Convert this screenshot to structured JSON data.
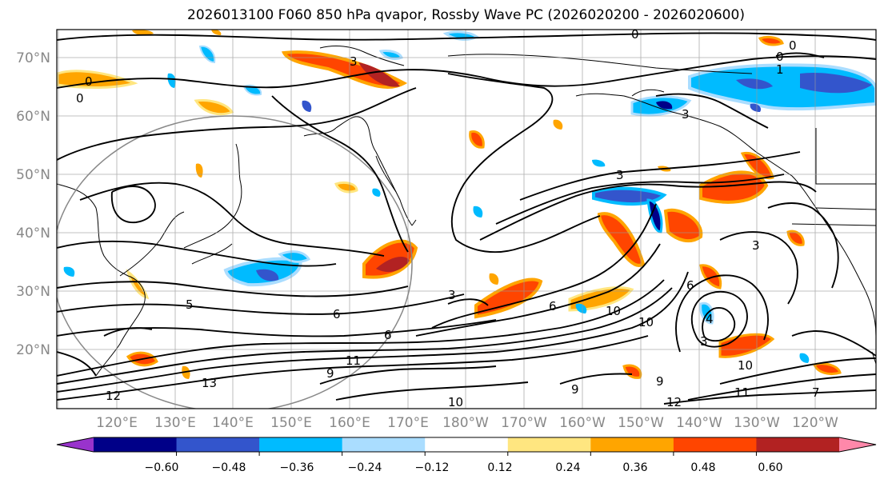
{
  "title": "2026013100 F060 850 hPa qvapor, Rossby Wave PC (2026020200 - 2026020600)",
  "map": {
    "lat_labels": [
      "70°N",
      "60°N",
      "50°N",
      "40°N",
      "30°N",
      "20°N"
    ],
    "lon_labels": [
      "120°E",
      "130°E",
      "140°E",
      "150°E",
      "160°E",
      "170°E",
      "180°W",
      "170°W",
      "160°W",
      "150°W",
      "140°W",
      "130°W",
      "120°W"
    ],
    "contour_labels": [
      "0",
      "0",
      "0",
      "0",
      "0",
      "1",
      "3",
      "3",
      "3",
      "3",
      "3",
      "3",
      "4",
      "5",
      "6",
      "6",
      "6",
      "6",
      "7",
      "9",
      "9",
      "9",
      "10",
      "10",
      "10",
      "10",
      "11",
      "11",
      "12",
      "12",
      "13"
    ]
  },
  "colorbar": {
    "colors": [
      "#9933cc",
      "#000088",
      "#3355cc",
      "#00bbff",
      "#aaddff",
      "#ffffff",
      "#ffe680",
      "#ffa500",
      "#ff4500",
      "#b22222",
      "#ff88aa"
    ],
    "tick_labels": [
      "−0.60",
      "−0.48",
      "−0.36",
      "−0.24",
      "−0.12",
      "0.12",
      "0.24",
      "0.36",
      "0.48",
      "0.60"
    ]
  }
}
